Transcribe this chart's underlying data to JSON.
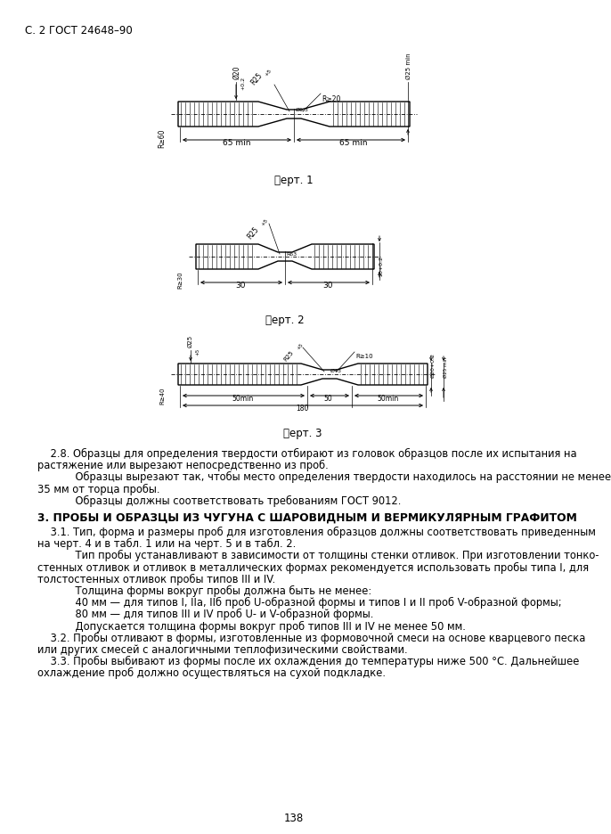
{
  "page_header": "С. 2 ГОСТ 24648–90",
  "page_number": "138",
  "fig1_caption": "䉾ерт. 1",
  "fig2_caption": "䉾ерт. 2",
  "fig3_caption": "䉾ерт. 3",
  "section_header": "3. ПРОБЫ И ОБРАЗЦЫ ИЗ ЧУГУНА С ШАРОВИДНЫМ И ВЕРМИКУЛЯРНЫМ ГРАФИТОМ",
  "para_28_indent": "    2.8. Образцы для определения твердости отбирают из головок образцов после их испытания на",
  "para_28_cont": "растяжение или вырезают непосредственно из проб.",
  "para_28b_indent": "    Образцы вырезают так, чтобы место определения твердости находилось на расстоянии не менее",
  "para_28b_cont": "35 мм от торца пробы.",
  "para_28c_indent": "    Образцы должны соответствовать требованиям ГОСТ 9012.",
  "para_31_indent": "    3.1. Тип, форма и размеры проб для изготовления образцов должны соответствовать приведенным",
  "para_31_cont": "на черт. 4 и в табл. 1 или на черт. 5 и в табл. 2.",
  "para_31b_indent": "    Тип пробы устанавливают в зависимости от толщины стенки отливок. При изготовлении тонко-",
  "para_31b_cont1": "стенных отливок и отливок в металлических формах рекомендуется использовать пробы типа I, для",
  "para_31b_cont2": "толстостенных отливок пробы типов III и IV.",
  "para_31c": "    Толщина формы вокруг пробы должна быть не менее:",
  "para_31d": "    40 мм — для типов I, IIа, IIб проб U-образной формы и типов I и II проб V-образной формы;",
  "para_31e": "    80 мм — для типов III и IV проб U- и V-образной формы.",
  "para_31f": "    Допускается толщина формы вокруг проб типов III и IV не менее 50 мм.",
  "para_32_indent": "    3.2. Пробы отливают в формы, изготовленные из формовочной смеси на основе кварцевого песка",
  "para_32_cont": "или других смесей с аналогичными теплофизическими свойствами.",
  "para_33_indent": "    3.3. Пробы выбивают из формы после их охлаждения до температуры ниже 500 °С. Дальнейшее",
  "para_33_cont": "охлаждение проб должно осуществляться на сухой подкладке.",
  "bg_color": "#ffffff",
  "text_color": "#000000",
  "line_color": "#000000"
}
